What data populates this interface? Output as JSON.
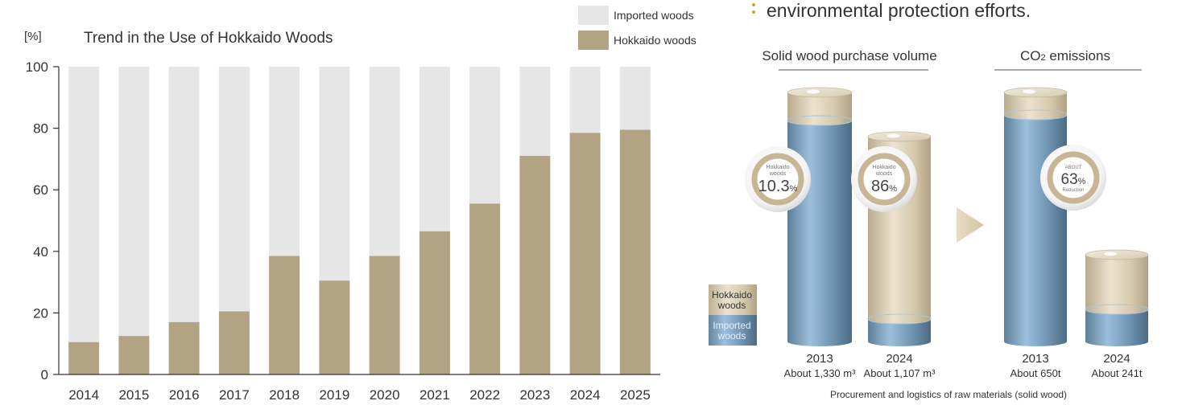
{
  "chart_data": [
    {
      "type": "bar",
      "stacked": true,
      "title": "Trend in the Use of Hokkaido Woods",
      "ylabel": "[%]",
      "ylim": [
        0,
        100
      ],
      "yticks": [
        0,
        20,
        40,
        60,
        80,
        100
      ],
      "grid": false,
      "legend_position": "top-right",
      "categories": [
        "2014",
        "2015",
        "2016",
        "2017",
        "2018",
        "2019",
        "2020",
        "2021",
        "2022",
        "2023",
        "2024",
        "2025"
      ],
      "series": [
        {
          "name": "Hokkaido woods",
          "color": "#b3a385",
          "values": [
            10.5,
            12.5,
            17,
            20.5,
            38.5,
            30.5,
            38.5,
            46.5,
            55.5,
            71,
            78.5,
            79.5
          ]
        },
        {
          "name": "Imported woods",
          "color": "#e6e6e6",
          "values": [
            89.5,
            87.5,
            83,
            79.5,
            61.5,
            69.5,
            61.5,
            53.5,
            44.5,
            29,
            21.5,
            20.5
          ]
        }
      ]
    },
    {
      "type": "bar",
      "infographic": true,
      "caption": "Procurement and logistics of raw materials (solid wood)",
      "legend": [
        "Hokkaido woods",
        "Imported woods"
      ],
      "groups": [
        {
          "heading": "Solid wood purchase volume",
          "bars": [
            {
              "year": "2013",
              "amount": "About 1,330 m³",
              "hokkaido_share_pct": 10.3,
              "badge": {
                "top": "Hokkaido",
                "mid": "woods",
                "value": "10.3",
                "unit": "%"
              }
            },
            {
              "year": "2024",
              "amount": "About 1,107 m³",
              "hokkaido_share_pct": 86,
              "badge": {
                "top": "Hokkaido",
                "mid": "woods",
                "value": "86",
                "unit": "%"
              }
            }
          ]
        },
        {
          "heading": "CO2 emissions",
          "bars": [
            {
              "year": "2013",
              "amount": "About 650t"
            },
            {
              "year": "2024",
              "amount": "About 241t"
            }
          ],
          "badge": {
            "top": "ABOUT",
            "value": "63",
            "unit": "%",
            "bottom": "Reduction"
          }
        }
      ]
    }
  ],
  "header_text": "environmental protection efforts."
}
